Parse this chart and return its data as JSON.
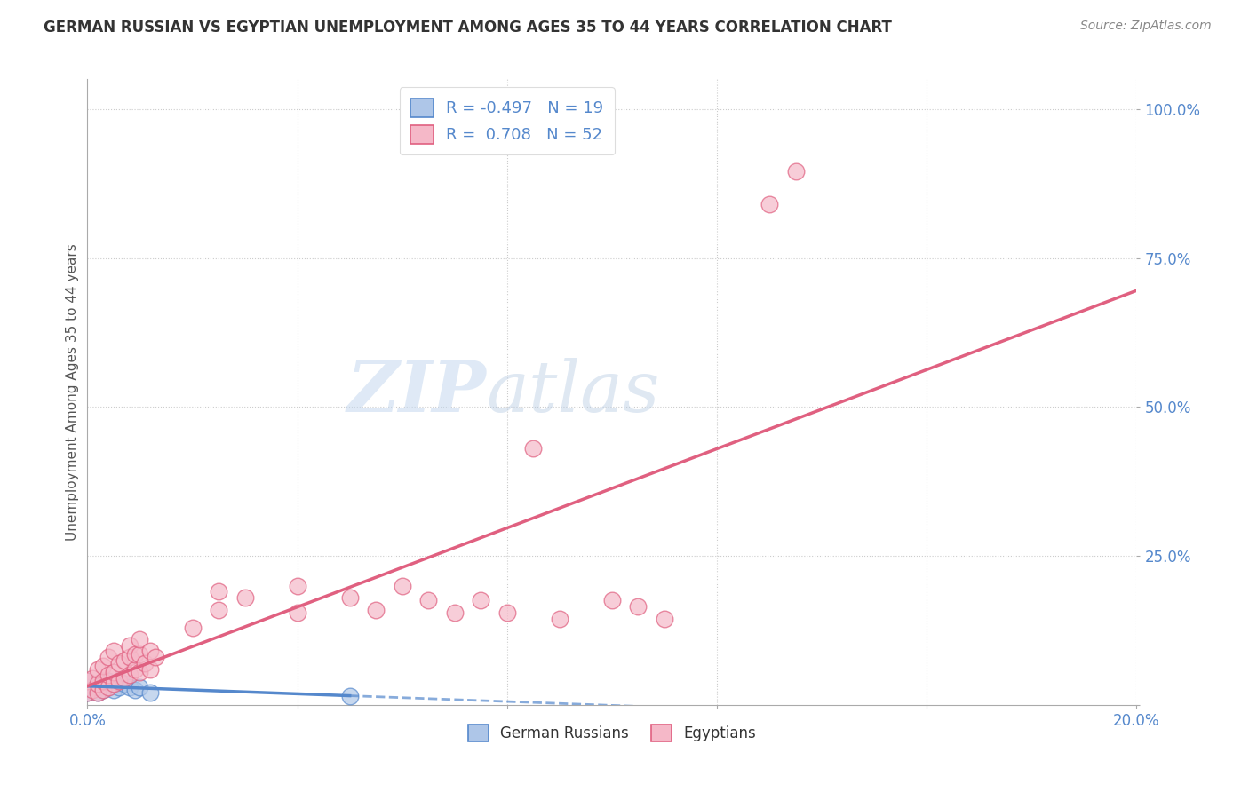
{
  "title": "GERMAN RUSSIAN VS EGYPTIAN UNEMPLOYMENT AMONG AGES 35 TO 44 YEARS CORRELATION CHART",
  "source": "Source: ZipAtlas.com",
  "ylabel": "Unemployment Among Ages 35 to 44 years",
  "xlim": [
    0.0,
    0.2
  ],
  "ylim": [
    0.0,
    1.05
  ],
  "gr_R": -0.497,
  "gr_N": 19,
  "eg_R": 0.708,
  "eg_N": 52,
  "gr_color": "#aec6e8",
  "eg_color": "#f5b8c8",
  "gr_line_color": "#5588cc",
  "eg_line_color": "#e06080",
  "watermark_zip": "ZIP",
  "watermark_atlas": "atlas",
  "background_color": "#ffffff",
  "grid_color": "#cccccc",
  "german_russian_x": [
    0.0,
    0.0,
    0.0,
    0.002,
    0.002,
    0.003,
    0.003,
    0.004,
    0.004,
    0.005,
    0.005,
    0.006,
    0.006,
    0.007,
    0.008,
    0.009,
    0.01,
    0.012,
    0.05
  ],
  "german_russian_y": [
    0.02,
    0.03,
    0.04,
    0.02,
    0.03,
    0.025,
    0.035,
    0.03,
    0.04,
    0.025,
    0.035,
    0.03,
    0.04,
    0.035,
    0.03,
    0.025,
    0.03,
    0.02,
    0.015
  ],
  "egyptian_x": [
    0.0,
    0.0,
    0.001,
    0.001,
    0.002,
    0.002,
    0.002,
    0.003,
    0.003,
    0.003,
    0.004,
    0.004,
    0.004,
    0.005,
    0.005,
    0.005,
    0.006,
    0.006,
    0.007,
    0.007,
    0.008,
    0.008,
    0.008,
    0.009,
    0.009,
    0.01,
    0.01,
    0.01,
    0.011,
    0.012,
    0.012,
    0.013,
    0.02,
    0.025,
    0.025,
    0.03,
    0.04,
    0.04,
    0.05,
    0.055,
    0.06,
    0.065,
    0.07,
    0.075,
    0.08,
    0.085,
    0.09,
    0.1,
    0.105,
    0.11,
    0.13,
    0.135
  ],
  "egyptian_y": [
    0.02,
    0.04,
    0.025,
    0.045,
    0.02,
    0.035,
    0.06,
    0.025,
    0.04,
    0.065,
    0.03,
    0.05,
    0.08,
    0.035,
    0.055,
    0.09,
    0.04,
    0.07,
    0.045,
    0.075,
    0.05,
    0.08,
    0.1,
    0.06,
    0.085,
    0.055,
    0.085,
    0.11,
    0.07,
    0.06,
    0.09,
    0.08,
    0.13,
    0.16,
    0.19,
    0.18,
    0.2,
    0.155,
    0.18,
    0.16,
    0.2,
    0.175,
    0.155,
    0.175,
    0.155,
    0.43,
    0.145,
    0.175,
    0.165,
    0.145,
    0.84,
    0.895
  ],
  "tick_color": "#5588cc",
  "title_color": "#333333",
  "source_color": "#888888",
  "label_color": "#555555"
}
